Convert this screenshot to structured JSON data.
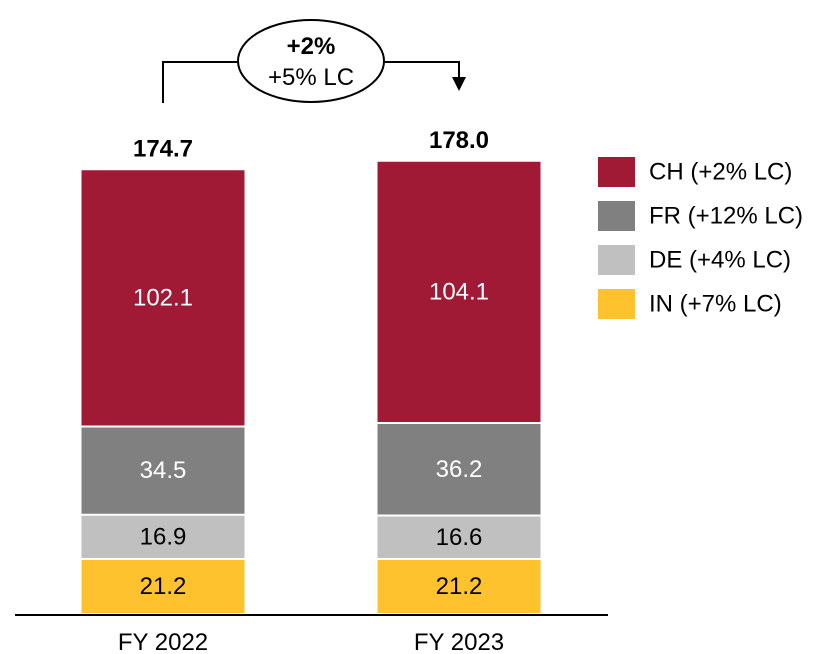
{
  "chart_data": {
    "type": "bar",
    "stacked": true,
    "categories": [
      "FY 2022",
      "FY 2023"
    ],
    "series": [
      {
        "name": "IN (+7% LC)",
        "values": [
          21.2,
          21.2
        ],
        "color": "#FDC22D",
        "label_color": "#000000"
      },
      {
        "name": "DE (+4% LC)",
        "values": [
          16.9,
          16.6
        ],
        "color": "#C0C0C0",
        "label_color": "#000000"
      },
      {
        "name": "FR (+12% LC)",
        "values": [
          34.5,
          36.2
        ],
        "color": "#808080",
        "label_color": "#ffffff"
      },
      {
        "name": "CH (+2% LC)",
        "values": [
          102.1,
          104.1
        ],
        "color": "#A01A35",
        "label_color": "#ffffff"
      }
    ],
    "totals": [
      "174.7",
      "178.0"
    ],
    "legend_order": [
      "CH (+2% LC)",
      "FR (+12% LC)",
      "DE (+4% LC)",
      "IN (+7% LC)"
    ],
    "legend_position": "right",
    "growth": {
      "line1": "+2%",
      "line2": "+5% LC"
    },
    "title": "",
    "xlabel": "",
    "ylabel": "",
    "grid": false
  }
}
